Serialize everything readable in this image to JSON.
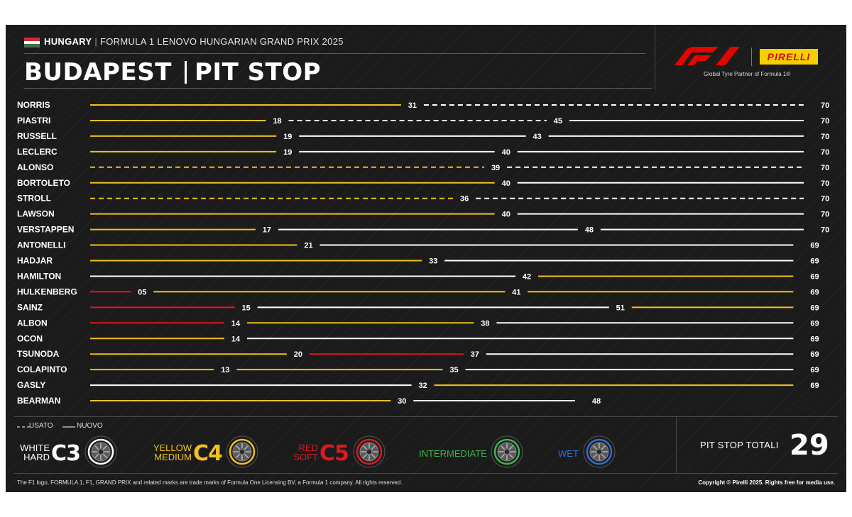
{
  "header": {
    "country": "HUNGARY",
    "event": "FORMULA 1 LENOVO HUNGARIAN GRAND PRIX 2025",
    "city": "BUDAPEST",
    "section": "PIT STOP"
  },
  "logos": {
    "tagline": "Global Tyre Partner of Formula 1®",
    "pirelli": "PIRELLI"
  },
  "flag_colors": [
    "#cd2a3e",
    "#ffffff",
    "#436f4d"
  ],
  "colors": {
    "hard": "#ffffff",
    "medium": "#f0c020",
    "soft": "#e0181f",
    "intermediate": "#3cb54a",
    "wet": "#2f6fd6",
    "background": "#1b1b1b"
  },
  "chart_data": {
    "type": "stint-bar",
    "x_unit": "lap",
    "xlim": [
      0,
      70
    ],
    "drivers": [
      {
        "name": "NORRIS",
        "finish": 70,
        "stints": [
          {
            "compound": "medium",
            "used": false,
            "end": 31
          },
          {
            "compound": "hard",
            "used": true,
            "end": 70
          }
        ]
      },
      {
        "name": "PIASTRI",
        "finish": 70,
        "stints": [
          {
            "compound": "medium",
            "used": false,
            "end": 18
          },
          {
            "compound": "hard",
            "used": true,
            "end": 45
          },
          {
            "compound": "hard",
            "used": false,
            "end": 70
          }
        ]
      },
      {
        "name": "RUSSELL",
        "finish": 70,
        "stints": [
          {
            "compound": "medium",
            "used": false,
            "end": 19
          },
          {
            "compound": "hard",
            "used": false,
            "end": 43
          },
          {
            "compound": "hard",
            "used": false,
            "end": 70
          }
        ]
      },
      {
        "name": "LECLERC",
        "finish": 70,
        "stints": [
          {
            "compound": "medium",
            "used": false,
            "end": 19
          },
          {
            "compound": "hard",
            "used": false,
            "end": 40
          },
          {
            "compound": "hard",
            "used": false,
            "end": 70
          }
        ]
      },
      {
        "name": "ALONSO",
        "finish": 70,
        "stints": [
          {
            "compound": "medium",
            "used": true,
            "end": 39
          },
          {
            "compound": "hard",
            "used": true,
            "end": 70
          }
        ]
      },
      {
        "name": "BORTOLETO",
        "finish": 70,
        "stints": [
          {
            "compound": "medium",
            "used": false,
            "end": 40
          },
          {
            "compound": "hard",
            "used": false,
            "end": 70
          }
        ]
      },
      {
        "name": "STROLL",
        "finish": 70,
        "stints": [
          {
            "compound": "medium",
            "used": true,
            "end": 36
          },
          {
            "compound": "hard",
            "used": true,
            "end": 70
          }
        ]
      },
      {
        "name": "LAWSON",
        "finish": 70,
        "stints": [
          {
            "compound": "medium",
            "used": false,
            "end": 40
          },
          {
            "compound": "hard",
            "used": false,
            "end": 70
          }
        ]
      },
      {
        "name": "VERSTAPPEN",
        "finish": 70,
        "stints": [
          {
            "compound": "medium",
            "used": false,
            "end": 17
          },
          {
            "compound": "hard",
            "used": false,
            "end": 48
          },
          {
            "compound": "hard",
            "used": false,
            "end": 70
          }
        ]
      },
      {
        "name": "ANTONELLI",
        "finish": 69,
        "stints": [
          {
            "compound": "medium",
            "used": false,
            "end": 21
          },
          {
            "compound": "hard",
            "used": false,
            "end": 69
          }
        ]
      },
      {
        "name": "HADJAR",
        "finish": 69,
        "stints": [
          {
            "compound": "medium",
            "used": false,
            "end": 33
          },
          {
            "compound": "hard",
            "used": false,
            "end": 69
          }
        ]
      },
      {
        "name": "HAMILTON",
        "finish": 69,
        "stints": [
          {
            "compound": "hard",
            "used": false,
            "end": 42
          },
          {
            "compound": "medium",
            "used": false,
            "end": 69
          }
        ]
      },
      {
        "name": "HULKENBERG",
        "finish": 69,
        "stints": [
          {
            "compound": "soft",
            "used": false,
            "end": 5,
            "label": "05"
          },
          {
            "compound": "medium",
            "used": false,
            "end": 41
          },
          {
            "compound": "medium",
            "used": false,
            "end": 69
          }
        ]
      },
      {
        "name": "SAINZ",
        "finish": 69,
        "stints": [
          {
            "compound": "soft",
            "used": false,
            "end": 15
          },
          {
            "compound": "hard",
            "used": false,
            "end": 51
          },
          {
            "compound": "medium",
            "used": false,
            "end": 69
          }
        ]
      },
      {
        "name": "ALBON",
        "finish": 69,
        "stints": [
          {
            "compound": "soft",
            "used": false,
            "end": 14
          },
          {
            "compound": "medium",
            "used": false,
            "end": 38
          },
          {
            "compound": "hard",
            "used": false,
            "end": 69
          }
        ]
      },
      {
        "name": "OCON",
        "finish": 69,
        "stints": [
          {
            "compound": "medium",
            "used": false,
            "end": 14
          },
          {
            "compound": "hard",
            "used": false,
            "end": 69
          }
        ]
      },
      {
        "name": "TSUNODA",
        "finish": 69,
        "stints": [
          {
            "compound": "medium",
            "used": false,
            "end": 20
          },
          {
            "compound": "soft",
            "used": false,
            "end": 37
          },
          {
            "compound": "hard",
            "used": false,
            "end": 69
          }
        ]
      },
      {
        "name": "COLAPINTO",
        "finish": 69,
        "stints": [
          {
            "compound": "medium",
            "used": false,
            "end": 13
          },
          {
            "compound": "medium",
            "used": false,
            "end": 35
          },
          {
            "compound": "hard",
            "used": false,
            "end": 69
          }
        ]
      },
      {
        "name": "GASLY",
        "finish": 69,
        "stints": [
          {
            "compound": "hard",
            "used": false,
            "end": 32
          },
          {
            "compound": "medium",
            "used": false,
            "end": 69
          }
        ]
      },
      {
        "name": "BEARMAN",
        "finish": 48,
        "stints": [
          {
            "compound": "medium",
            "used": false,
            "end": 30
          },
          {
            "compound": "hard",
            "used": false,
            "end": 48
          }
        ]
      }
    ]
  },
  "legend": {
    "used_label": "USATO",
    "new_label": "NUOVO",
    "compounds": [
      {
        "key": "hard",
        "line1": "WHITE",
        "line2": "HARD",
        "code": "C3"
      },
      {
        "key": "medium",
        "line1": "YELLOW",
        "line2": "MEDIUM",
        "code": "C4"
      },
      {
        "key": "soft",
        "line1": "RED",
        "line2": "SOFT",
        "code": "C5"
      },
      {
        "key": "intermediate",
        "word": "INTERMEDIATE"
      },
      {
        "key": "wet",
        "word": "WET"
      }
    ]
  },
  "totals": {
    "label": "PIT STOP TOTALI",
    "value": "29"
  },
  "footer": {
    "left": "The F1 logo, FORMULA 1, F1, GRAND PRIX and related marks are trade marks of Formula One Licensing BV, a Formula 1 company. All rights reserved.",
    "right": "Copyright © Pirelli 2025. Rights free for media use."
  }
}
